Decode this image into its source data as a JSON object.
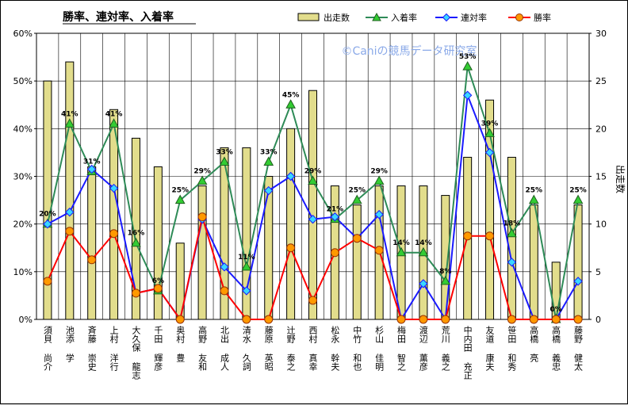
{
  "chart_data": {
    "type": "bar+line",
    "title": "勝率、連対率、入着率",
    "watermark": "©Caniの競馬データ研究室",
    "categories": [
      "須貝 尚介",
      "池添 学",
      "斉藤 崇史",
      "上村 洋行",
      "大久保 龍志",
      "千田 輝彦",
      "奥村 豊",
      "高野 友和",
      "北出 成人",
      "清水 久詞",
      "藤原 英昭",
      "辻野 泰之",
      "西村 真幸",
      "松永 幹夫",
      "中竹 和也",
      "杉山 佳明",
      "梅田 智之",
      "渡辺 薫彦",
      "荒川 義之",
      "中内田 充正",
      "友道 康夫",
      "笹田 和秀",
      "高橋 亮",
      "高橋 義忠",
      "藤野 健太"
    ],
    "series": [
      {
        "name": "出走数",
        "type": "bar",
        "axis": "right",
        "color": "#e2dd8c",
        "values": [
          25,
          27,
          16,
          22,
          19,
          16,
          8,
          14,
          18,
          18,
          15,
          20,
          24,
          14,
          12,
          14,
          14,
          14,
          13,
          17,
          23,
          17,
          12,
          6,
          12
        ]
      },
      {
        "name": "入着率",
        "type": "line",
        "axis": "left",
        "color": "#2e8b57",
        "marker": "triangle",
        "values": [
          20,
          41,
          31,
          41,
          16,
          6,
          25,
          29,
          33,
          11,
          33,
          45,
          29,
          21,
          25,
          29,
          14,
          14,
          8,
          53,
          39,
          18,
          25,
          0,
          25
        ]
      },
      {
        "name": "連対率",
        "type": "line",
        "axis": "left",
        "color": "#1a1aff",
        "marker": "diamond",
        "values": [
          20,
          22.5,
          31.5,
          27.5,
          5.5,
          6.5,
          0,
          21,
          11,
          6,
          27,
          30,
          21,
          21.5,
          17,
          22,
          0,
          7.5,
          0,
          47,
          35,
          12,
          0,
          0,
          8
        ]
      },
      {
        "name": "勝率",
        "type": "line",
        "axis": "left",
        "color": "#ff0000",
        "marker": "circle",
        "values": [
          8,
          18.5,
          12.5,
          18,
          5.5,
          6.5,
          0,
          21.5,
          6,
          0,
          0,
          15,
          4,
          14,
          17,
          14.5,
          0,
          0,
          0,
          17.5,
          17.5,
          0,
          0,
          0,
          0
        ]
      }
    ],
    "data_labels": [
      "20%",
      "41%",
      "31%",
      "41%",
      "16%",
      "6%",
      "25%",
      "29%",
      "33%",
      "11%",
      "33%",
      "45%",
      "29%",
      "21%",
      "25%",
      "29%",
      "14%",
      "14%",
      "8%",
      "53%",
      "39%",
      "18%",
      "25%",
      "0%",
      "25%"
    ],
    "y_left": {
      "min": 0,
      "max": 60,
      "step": 10,
      "format": "%",
      "ticks": [
        "0%",
        "10%",
        "20%",
        "30%",
        "40%",
        "50%",
        "60%"
      ]
    },
    "y_right": {
      "min": 0,
      "max": 30,
      "step": 5,
      "label": "出走数",
      "ticks": [
        "0",
        "5",
        "10",
        "15",
        "20",
        "25",
        "30"
      ]
    },
    "grid": true,
    "legend": "top-right",
    "colors": {
      "bar_fill": "#e2dd8c",
      "bar_edge": "#000000",
      "legend_title_underline": "#000000"
    }
  }
}
